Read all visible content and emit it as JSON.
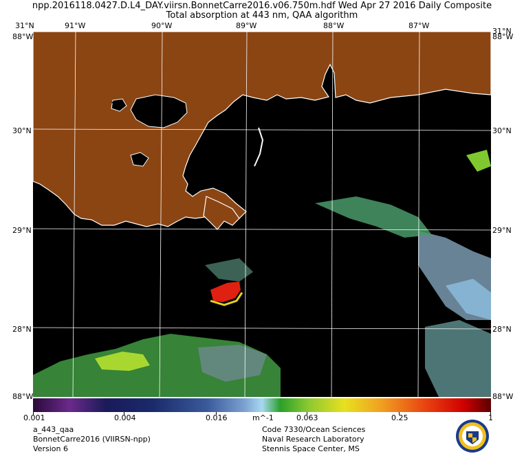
{
  "header": {
    "title_line1": "npp.2016118.0427.D.L4_DAY.viirsn.BonnetCarre2016.v06.750m.hdf    Wed Apr 27 2016 Daily Composite",
    "title_line2": "Total absorption at 443 nm, QAA algorithm"
  },
  "map": {
    "lon_labels": [
      "91°W",
      "90°W",
      "89°W",
      "88°W",
      "87°W"
    ],
    "lat_labels": [
      "30°N",
      "29°N",
      "28°N"
    ],
    "corner_top_left": "31°N",
    "corner_top_left_w": "88°W",
    "corner_top_right": "31°N",
    "corner_top_right_w": "88°W",
    "corner_bottom_left": "88°W",
    "corner_bottom_right": "88°W",
    "land_color": "#8b4513",
    "water_color": "#000000"
  },
  "colorbar": {
    "labels": [
      "0.001",
      "0.004",
      "0.016",
      "m^-1",
      "0.063",
      "0.25",
      "1"
    ],
    "scale": "log"
  },
  "footer": {
    "left": [
      "a_443_qaa",
      "BonnetCarre2016 (VIIRSN-npp)",
      "Version 6"
    ],
    "center": [
      "Code 7330/Ocean Sciences",
      "Naval Research Laboratory",
      "Stennis Space Center, MS"
    ]
  },
  "logo": {
    "icon": "nrl-seal-icon"
  }
}
